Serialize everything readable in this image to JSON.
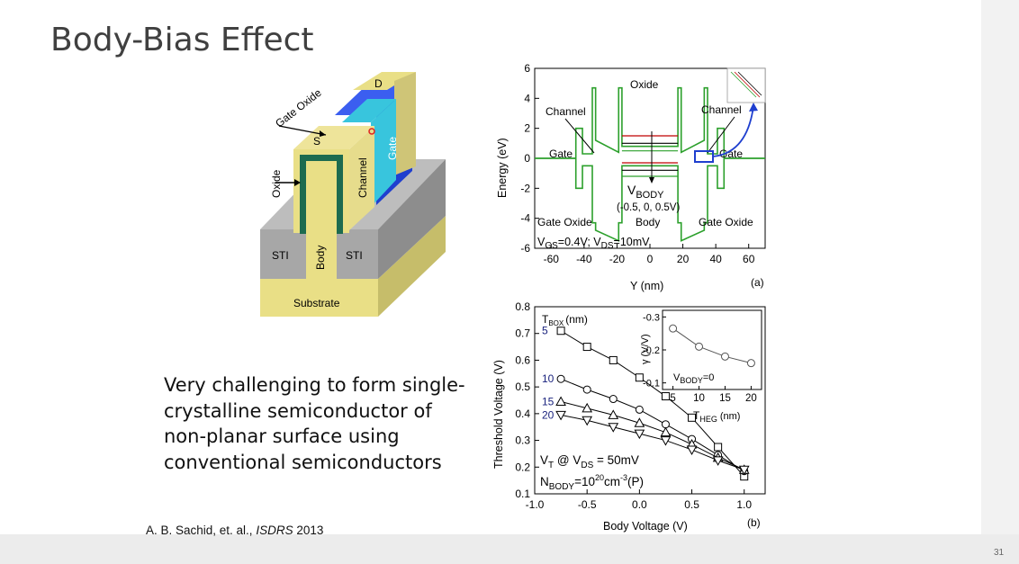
{
  "slide": {
    "title": "Body-Bias Effect",
    "body_text": "Very challenging to form single-crystalline semiconductor of non-planar surface using conventional semiconductors",
    "citation_authors": "A. B. Sachid, et. al.,",
    "citation_venue": "ISDRS",
    "citation_year": "2013",
    "page_number": "31"
  },
  "device": {
    "labels": {
      "drain": "D",
      "gate_oxide": "Gate Oxide",
      "source": "S",
      "gate": "Gate",
      "channel": "Channel",
      "oxide": "Oxide",
      "sti_left": "STI",
      "sti_right": "STI",
      "body": "Body",
      "substrate": "Substrate"
    },
    "colors": {
      "gate": "#1f3fcf",
      "oxide": "#38c5dd",
      "channel": "#e6dc8c",
      "body_outline": "#1d6b4f",
      "sti": "#a7a7a7",
      "substrate": "#e9df86"
    }
  },
  "chart_data": [
    {
      "type": "line",
      "xlabel": "Y (nm)",
      "ylabel": "Energy (eV)",
      "xlim": [
        -70,
        70
      ],
      "ylim": [
        -6,
        6
      ],
      "x_ticks": [
        "-60",
        "-40",
        "-20",
        "0",
        "20",
        "40",
        "60"
      ],
      "y_ticks": [
        "6",
        "4",
        "2",
        "0",
        "-2",
        "-4",
        "-6"
      ],
      "panel_label": "(a)",
      "annotations": {
        "oxide": "Oxide",
        "channel_left": "Channel",
        "channel_right": "Channel",
        "gate_left": "Gate",
        "gate_right": "Gate",
        "vbody_v": "V",
        "vbody_sub": "BODY",
        "vbody_values": "(-0.5, 0, 0.5V)",
        "body": "Body",
        "gate_oxide_left": "Gate Oxide",
        "gate_oxide_right": "Gate Oxide",
        "bias_vgs": "V",
        "bias_vgs_sub": "GS",
        "bias_vgs_val": "=0.4V; V",
        "bias_vds_sub": "DS",
        "bias_vds_val": "=10mV"
      },
      "series": [
        {
          "color": "#2ca02c",
          "x": [
            -70,
            -45,
            -45,
            -41,
            -41,
            -35,
            -35,
            -33,
            -33,
            -19,
            -19,
            -17,
            -17,
            17,
            17,
            19,
            19,
            33,
            33,
            35,
            35,
            41,
            41,
            45,
            45,
            70
          ],
          "y": [
            0,
            0,
            2,
            2,
            0.3,
            0.3,
            4.7,
            4.7,
            1.2,
            0.4,
            4.7,
            4.7,
            0.8,
            0.8,
            4.7,
            4.7,
            0.4,
            1.2,
            4.7,
            4.7,
            0.3,
            0.3,
            2,
            2,
            0,
            0
          ]
        },
        {
          "color": "#2ca02c",
          "x": [
            -70,
            -45,
            -45,
            -41,
            -41,
            -35,
            -35,
            -33,
            -33,
            -19,
            -19,
            -17,
            -17,
            17,
            17,
            19,
            19,
            33,
            33,
            35,
            35,
            41,
            41,
            45,
            45,
            70
          ],
          "y": [
            0,
            0,
            -2,
            -2,
            -0.5,
            -0.5,
            -4.3,
            -4.3,
            -4.8,
            -5.5,
            -4.3,
            -4.3,
            -0.5,
            -0.5,
            -4.3,
            -4.3,
            -5.5,
            -4.8,
            -4.3,
            -4.3,
            -0.5,
            -0.5,
            -2,
            -2,
            0,
            0
          ]
        }
      ],
      "body_levels": [
        {
          "color": "#c00000",
          "y": 1.5
        },
        {
          "color": "#000000",
          "y": 1.0
        },
        {
          "color": "#2ca02c",
          "y": 0.5
        },
        {
          "color": "#c00000",
          "y": -0.3
        },
        {
          "color": "#000000",
          "y": -0.8
        },
        {
          "color": "#2ca02c",
          "y": -1.2
        }
      ]
    },
    {
      "type": "line",
      "xlabel": "Body Voltage (V)",
      "ylabel": "Threshold Voltage (V)",
      "xlim": [
        -1.0,
        1.2
      ],
      "ylim": [
        0.1,
        0.8
      ],
      "x_ticks": [
        "-1.0",
        "-0.5",
        "0.0",
        "0.5",
        "1.0"
      ],
      "y_ticks": [
        "0.8",
        "0.7",
        "0.6",
        "0.5",
        "0.4",
        "0.3",
        "0.2",
        "0.1"
      ],
      "panel_label": "(b)",
      "legend_title": "T",
      "legend_title_sub": "BOX",
      "legend_title_unit": "(nm)",
      "annotation_vt": "V",
      "annotation_vt_sub": "T",
      "annotation_vt_at": " @ V",
      "annotation_vds_sub": "DS",
      "annotation_vds_val": " = 50mV",
      "annotation_nbody": "N",
      "annotation_nbody_sub": "BODY",
      "annotation_nbody_val": "=10",
      "annotation_nbody_exp": "20",
      "annotation_nbody_unit": "cm",
      "annotation_nbody_unit_exp": "-3",
      "annotation_nbody_type": "(P)",
      "series": [
        {
          "name": "5",
          "marker": "square",
          "x": [
            -0.75,
            -0.5,
            -0.25,
            0.0,
            0.25,
            0.5,
            0.75,
            1.0
          ],
          "y": [
            0.71,
            0.65,
            0.6,
            0.535,
            0.465,
            0.385,
            0.275,
            0.165
          ]
        },
        {
          "name": "10",
          "marker": "circle",
          "x": [
            -0.75,
            -0.5,
            -0.25,
            0.0,
            0.25,
            0.5,
            0.75,
            1.0
          ],
          "y": [
            0.53,
            0.49,
            0.455,
            0.415,
            0.36,
            0.305,
            0.245,
            0.185
          ]
        },
        {
          "name": "15",
          "marker": "triangle-up",
          "x": [
            -0.75,
            -0.5,
            -0.25,
            0.0,
            0.25,
            0.5,
            0.75,
            1.0
          ],
          "y": [
            0.445,
            0.42,
            0.395,
            0.365,
            0.33,
            0.285,
            0.235,
            0.19
          ]
        },
        {
          "name": "20",
          "marker": "triangle-down",
          "x": [
            -0.75,
            -0.5,
            -0.25,
            0.0,
            0.25,
            0.5,
            0.75,
            1.0
          ],
          "y": [
            0.395,
            0.375,
            0.35,
            0.325,
            0.3,
            0.265,
            0.225,
            0.19
          ]
        }
      ],
      "inset": {
        "xlabel": "T",
        "xlabel_sub": "HEG",
        "xlabel_unit": "(nm)",
        "ylabel": "γ (V/V)",
        "xlim": [
          3,
          22
        ],
        "ylim": [
          -0.08,
          -0.32
        ],
        "x_ticks": [
          "5",
          "10",
          "15",
          "20"
        ],
        "y_ticks": [
          "-0.3",
          "-0.2",
          "-0.1"
        ],
        "note": "V",
        "note_sub": "BODY",
        "note_val": "=0",
        "x": [
          5,
          10,
          15,
          20
        ],
        "y": [
          -0.265,
          -0.21,
          -0.18,
          -0.16
        ]
      }
    }
  ]
}
